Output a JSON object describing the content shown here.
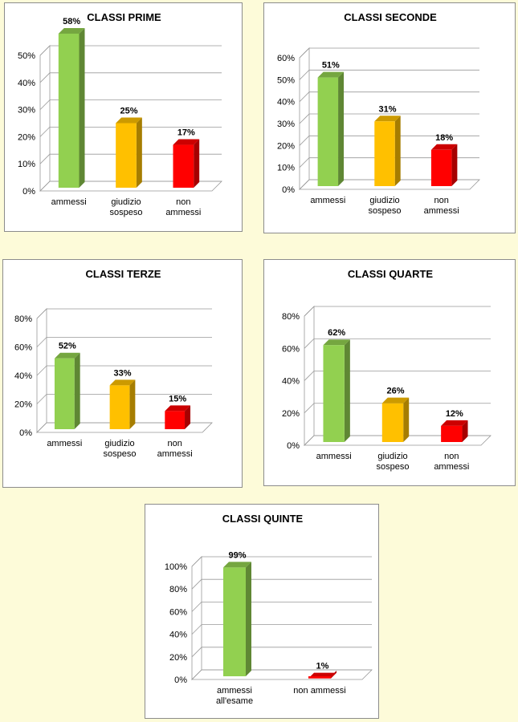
{
  "chart_data": [
    {
      "type": "bar",
      "title": "CLASSI PRIME",
      "categories": [
        "ammessi",
        "giudizio sospeso",
        "non ammessi"
      ],
      "values": [
        58,
        25,
        17
      ],
      "value_labels": [
        "58%",
        "25%",
        "17%"
      ],
      "colors": [
        "#92d050",
        "#ffc000",
        "#ff0000"
      ],
      "ylim": [
        0,
        50
      ],
      "yticks": [
        {
          "value": 0,
          "label": "0%"
        },
        {
          "value": 10,
          "label": "10%"
        },
        {
          "value": 20,
          "label": "20%"
        },
        {
          "value": 30,
          "label": "30%"
        },
        {
          "value": 40,
          "label": "40%"
        },
        {
          "value": 50,
          "label": "50%"
        }
      ],
      "grid": true
    },
    {
      "type": "bar",
      "title": "CLASSI SECONDE",
      "categories": [
        "ammessi",
        "giudizio sospeso",
        "non ammessi"
      ],
      "values": [
        51,
        31,
        18
      ],
      "value_labels": [
        "51%",
        "31%",
        "18%"
      ],
      "colors": [
        "#92d050",
        "#ffc000",
        "#ff0000"
      ],
      "ylim": [
        0,
        60
      ],
      "yticks": [
        {
          "value": 0,
          "label": "0%"
        },
        {
          "value": 10,
          "label": "10%"
        },
        {
          "value": 20,
          "label": "20%"
        },
        {
          "value": 30,
          "label": "30%"
        },
        {
          "value": 40,
          "label": "40%"
        },
        {
          "value": 50,
          "label": "50%"
        },
        {
          "value": 60,
          "label": "60%"
        }
      ],
      "grid": true
    },
    {
      "type": "bar",
      "title": "CLASSI TERZE",
      "categories": [
        "ammessi",
        "giudizio sospeso",
        "non ammessi"
      ],
      "values": [
        52,
        33,
        15
      ],
      "value_labels": [
        "52%",
        "33%",
        "15%"
      ],
      "colors": [
        "#92d050",
        "#ffc000",
        "#ff0000"
      ],
      "ylim": [
        0,
        80
      ],
      "yticks": [
        {
          "value": 0,
          "label": "0%"
        },
        {
          "value": 20,
          "label": "20%"
        },
        {
          "value": 40,
          "label": "40%"
        },
        {
          "value": 60,
          "label": "60%"
        },
        {
          "value": 80,
          "label": "80%"
        }
      ],
      "grid": true
    },
    {
      "type": "bar",
      "title": "CLASSI QUARTE",
      "categories": [
        "ammessi",
        "giudizio sospeso",
        "non ammessi"
      ],
      "values": [
        62,
        26,
        12
      ],
      "value_labels": [
        "62%",
        "26%",
        "12%"
      ],
      "colors": [
        "#92d050",
        "#ffc000",
        "#ff0000"
      ],
      "ylim": [
        0,
        80
      ],
      "yticks": [
        {
          "value": 0,
          "label": "0%"
        },
        {
          "value": 20,
          "label": "20%"
        },
        {
          "value": 40,
          "label": "40%"
        },
        {
          "value": 60,
          "label": "60%"
        },
        {
          "value": 80,
          "label": "80%"
        }
      ],
      "grid": true
    },
    {
      "type": "bar",
      "title": "CLASSI QUINTE",
      "categories": [
        "ammessi all'esame",
        "non ammessi"
      ],
      "values": [
        99,
        1
      ],
      "value_labels": [
        "99%",
        "1%"
      ],
      "colors": [
        "#92d050",
        "#ff0000"
      ],
      "ylim": [
        0,
        100
      ],
      "yticks": [
        {
          "value": 0,
          "label": "0%"
        },
        {
          "value": 20,
          "label": "20%"
        },
        {
          "value": 40,
          "label": "40%"
        },
        {
          "value": 60,
          "label": "60%"
        },
        {
          "value": 80,
          "label": "80%"
        },
        {
          "value": 100,
          "label": "100%"
        }
      ],
      "grid": true
    }
  ]
}
